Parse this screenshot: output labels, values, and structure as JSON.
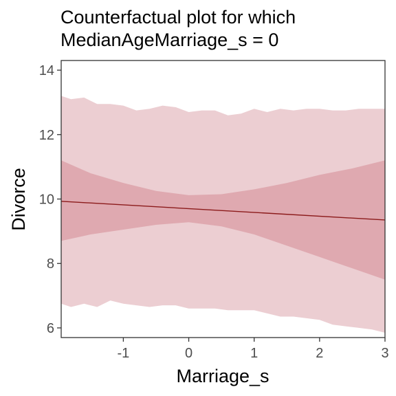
{
  "chart_data": {
    "type": "area",
    "title_lines": [
      "Counterfactual plot for which",
      "MedianAgeMarriage_s = 0"
    ],
    "xlabel": "Marriage_s",
    "ylabel": "Divorce",
    "xlim": [
      -1.95,
      3.0
    ],
    "ylim": [
      5.7,
      14.3
    ],
    "x_ticks": [
      -1,
      0,
      1,
      2,
      3
    ],
    "y_ticks": [
      6,
      8,
      10,
      12,
      14
    ],
    "grid": false,
    "legend": "none",
    "colors": {
      "outer_band": "#ecced2",
      "inner_band": "#dfa9b0",
      "mean_line": "#8b1a1a",
      "axis": "#333333"
    },
    "series": [
      {
        "kind": "prediction-interval",
        "x": [
          -1.95,
          -1.8,
          -1.6,
          -1.4,
          -1.2,
          -1.0,
          -0.8,
          -0.6,
          -0.4,
          -0.2,
          0.0,
          0.2,
          0.4,
          0.6,
          0.8,
          1.0,
          1.2,
          1.4,
          1.6,
          1.8,
          2.0,
          2.2,
          2.4,
          2.6,
          2.8,
          3.0
        ],
        "upper": [
          13.2,
          13.1,
          13.15,
          12.95,
          12.95,
          12.9,
          12.75,
          12.8,
          12.9,
          12.85,
          12.7,
          12.75,
          12.75,
          12.6,
          12.65,
          12.8,
          12.7,
          12.8,
          12.75,
          12.8,
          12.8,
          12.75,
          12.75,
          12.8,
          12.8,
          12.8
        ],
        "lower": [
          6.75,
          6.65,
          6.75,
          6.65,
          6.85,
          6.75,
          6.7,
          6.65,
          6.7,
          6.7,
          6.6,
          6.6,
          6.6,
          6.55,
          6.55,
          6.55,
          6.45,
          6.35,
          6.35,
          6.3,
          6.25,
          6.1,
          6.05,
          6.0,
          5.95,
          5.85
        ]
      },
      {
        "kind": "mean-interval",
        "x": [
          -1.95,
          -1.5,
          -1.0,
          -0.5,
          0.0,
          0.5,
          1.0,
          1.5,
          2.0,
          2.5,
          3.0
        ],
        "upper": [
          11.2,
          10.8,
          10.5,
          10.25,
          10.12,
          10.15,
          10.3,
          10.5,
          10.75,
          10.95,
          11.2
        ],
        "lower": [
          8.7,
          8.9,
          9.05,
          9.2,
          9.28,
          9.15,
          8.9,
          8.55,
          8.2,
          7.85,
          7.5
        ]
      },
      {
        "kind": "mean-line",
        "x": [
          -1.95,
          3.0
        ],
        "y": [
          9.93,
          9.35
        ]
      }
    ]
  }
}
